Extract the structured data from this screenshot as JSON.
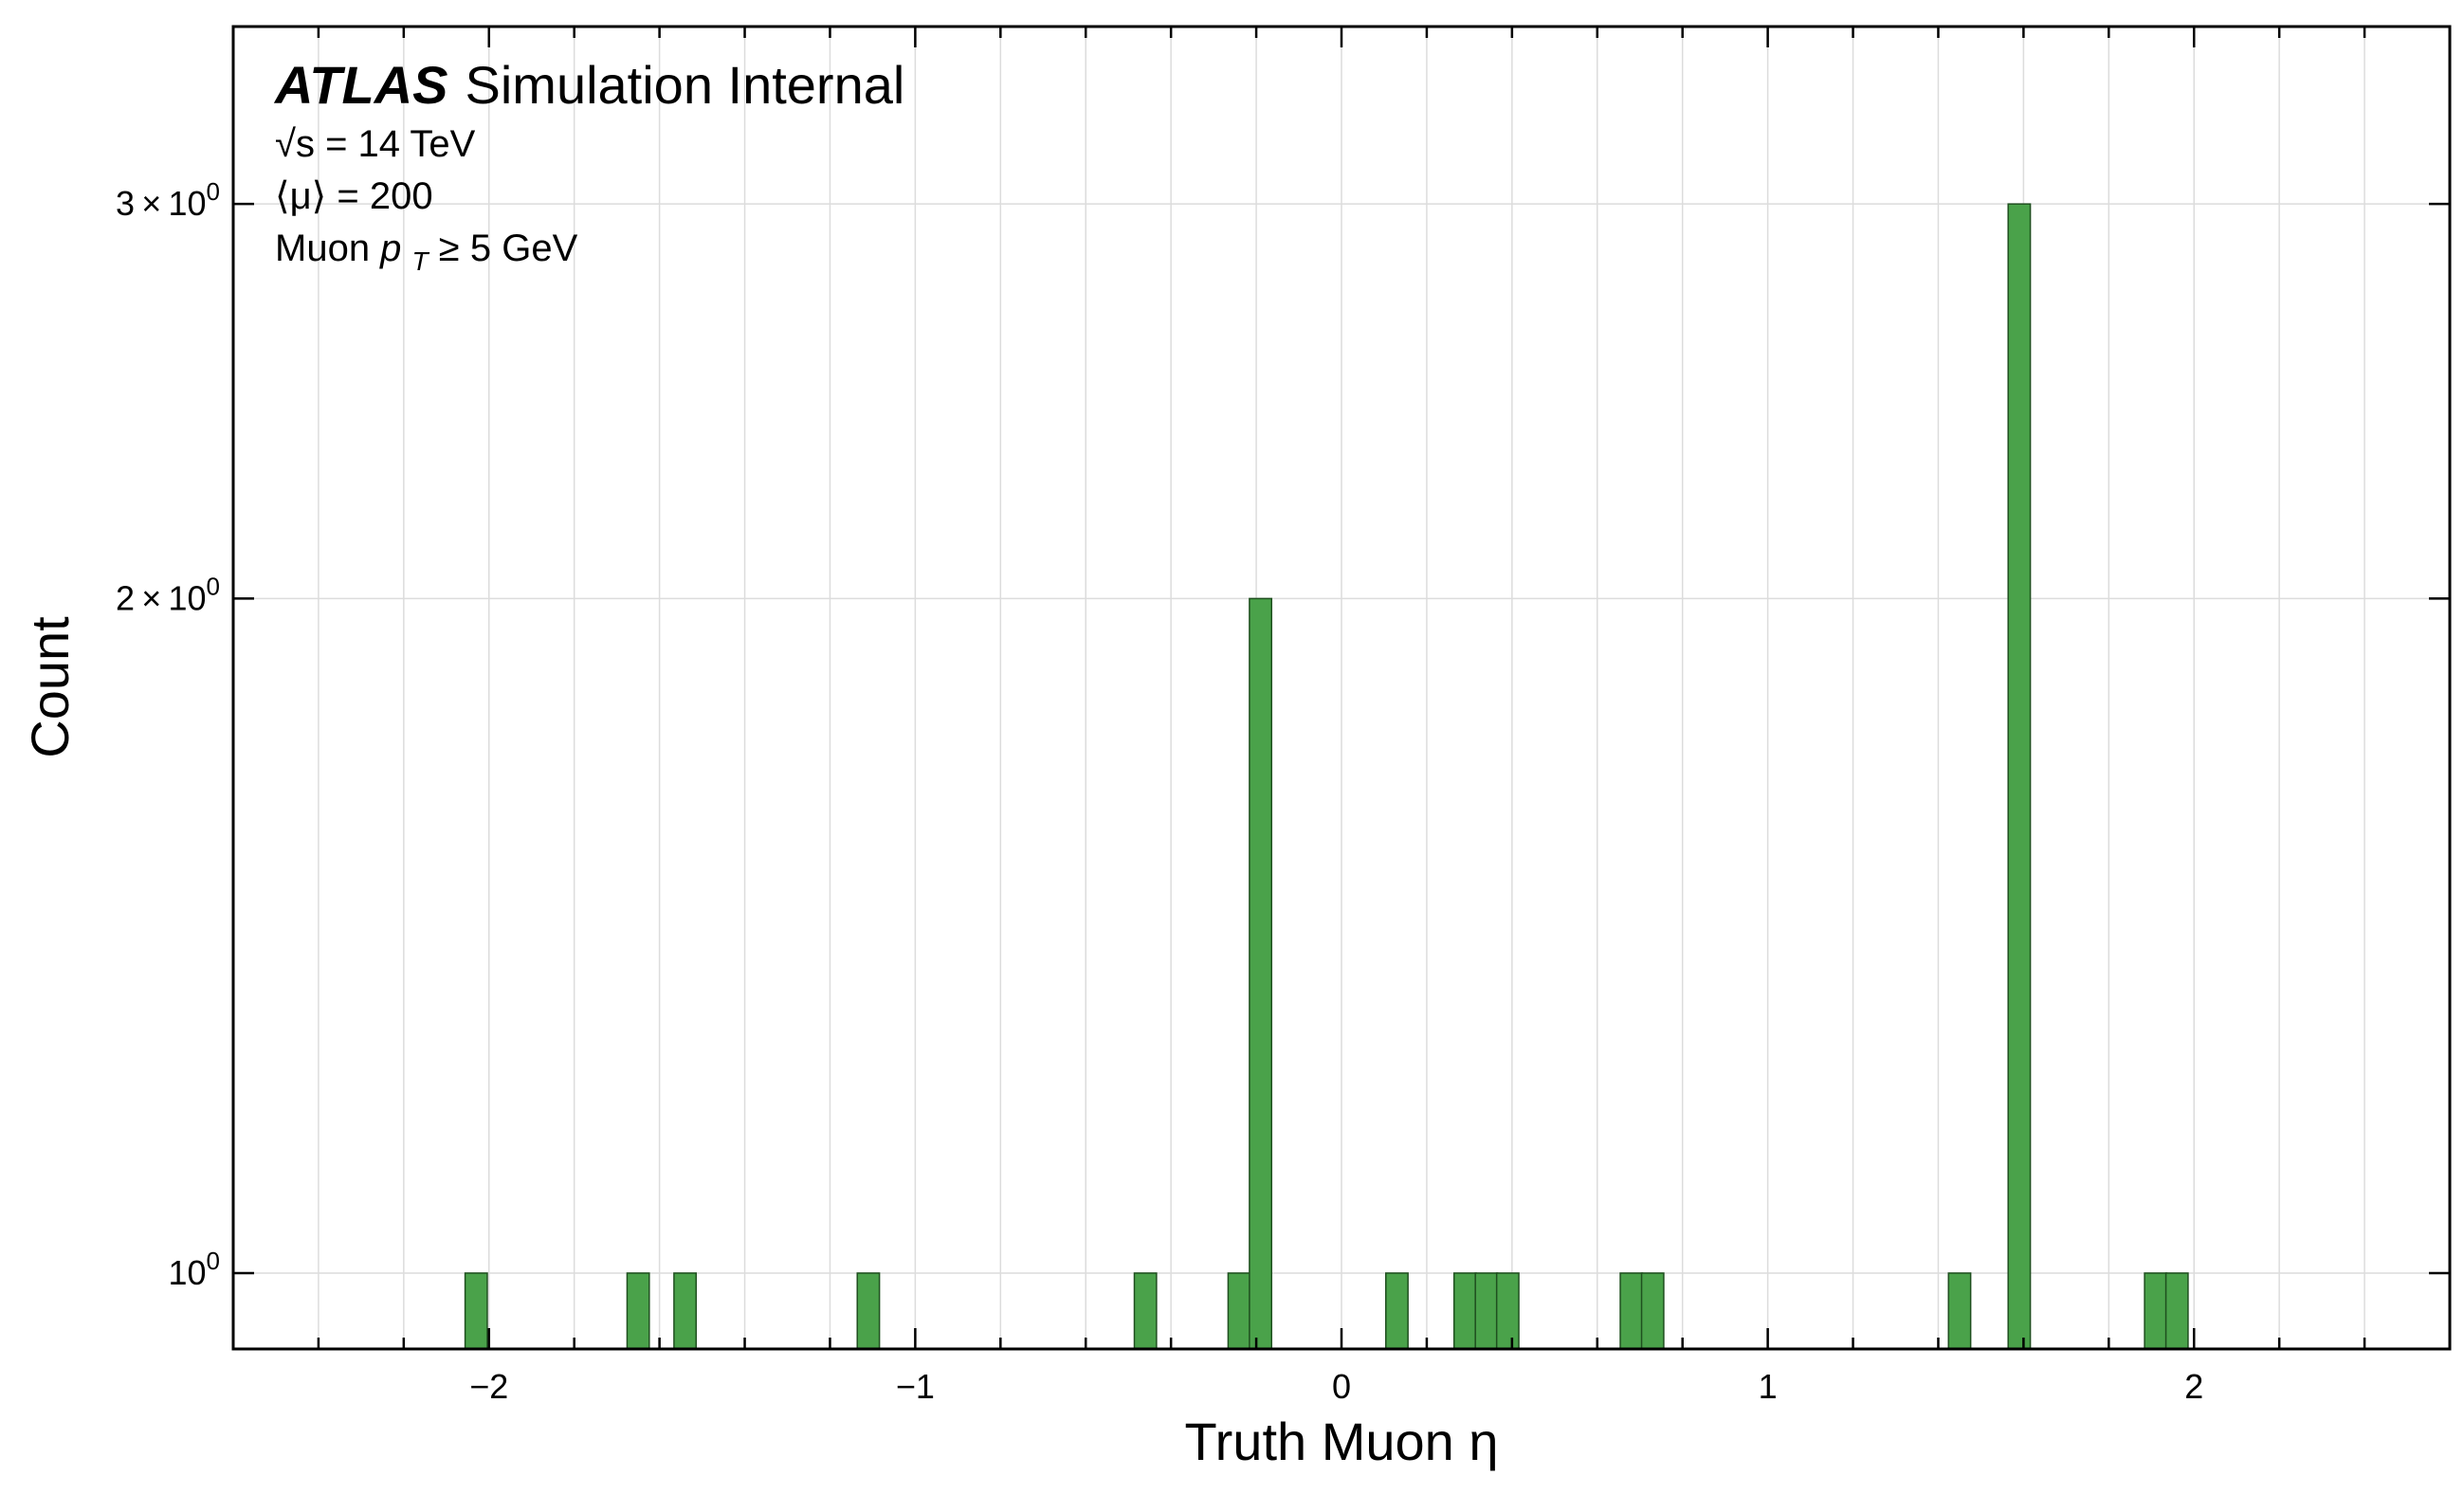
{
  "chart_data": {
    "type": "bar",
    "subtype": "histogram",
    "xlabel": "Truth Muon η",
    "ylabel": "Count",
    "yscale": "log",
    "xlim": [
      -2.6,
      2.6
    ],
    "ylim": [
      0.925,
      3.6
    ],
    "bin_width": 0.052,
    "x_ticks": [
      -2,
      -1,
      0,
      1,
      2
    ],
    "x_tick_labels": [
      "−2",
      "−1",
      "0",
      "1",
      "2"
    ],
    "y_ticks": [
      {
        "value": 1,
        "base": "10",
        "exp": "0",
        "label": "10"
      },
      {
        "value": 2,
        "mant": "2",
        "base": "10",
        "exp": "0",
        "label": "2 × 10"
      },
      {
        "value": 3,
        "mant": "3",
        "base": "10",
        "exp": "0",
        "label": "3 × 10"
      }
    ],
    "grid": true,
    "color": "#4aa24a",
    "bins": [
      {
        "x": -2.03,
        "count": 1
      },
      {
        "x": -1.65,
        "count": 1
      },
      {
        "x": -1.54,
        "count": 1
      },
      {
        "x": -1.11,
        "count": 1
      },
      {
        "x": -0.46,
        "count": 1
      },
      {
        "x": -0.24,
        "count": 1
      },
      {
        "x": -0.19,
        "count": 2
      },
      {
        "x": 0.13,
        "count": 1
      },
      {
        "x": 0.29,
        "count": 1
      },
      {
        "x": 0.34,
        "count": 1
      },
      {
        "x": 0.39,
        "count": 1
      },
      {
        "x": 0.68,
        "count": 1
      },
      {
        "x": 0.73,
        "count": 1
      },
      {
        "x": 1.45,
        "count": 1
      },
      {
        "x": 1.59,
        "count": 3
      },
      {
        "x": 1.91,
        "count": 1
      },
      {
        "x": 1.96,
        "count": 1
      }
    ],
    "annotation": {
      "experiment": "ATLAS",
      "status": "Simulation Internal",
      "line1": "√s = 14 TeV",
      "line2": "⟨μ⟩ = 200",
      "line3_prefix": "Muon ",
      "line3_var": "p",
      "line3_sub": "T",
      "line3_suffix": " ≥ 5 GeV"
    }
  }
}
